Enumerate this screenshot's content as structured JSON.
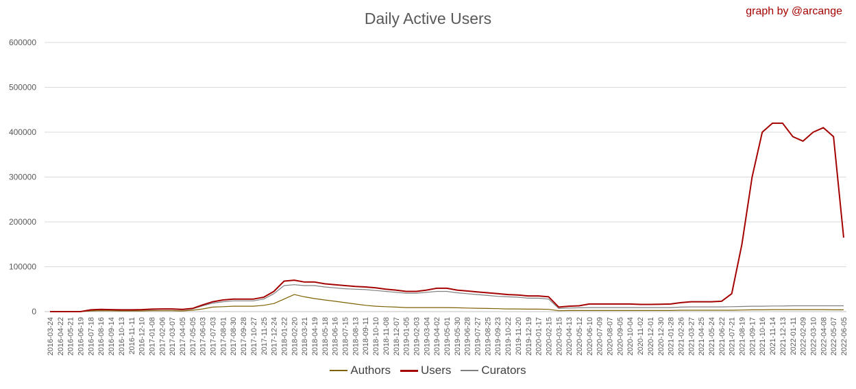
{
  "chart_data": {
    "type": "line",
    "title": "Daily Active Users",
    "credit": "graph by @arcange",
    "xlabel": "",
    "ylabel": "",
    "ylim": [
      0,
      600000
    ],
    "yticks": [
      "0",
      "100000",
      "200000",
      "300000",
      "400000",
      "500000",
      "600000"
    ],
    "grid": true,
    "legend_position": "bottom",
    "colors": {
      "Authors": "#7f6000",
      "Users": "#a50000",
      "Curators": "#7f7f7f",
      "grid": "#d9d9d9",
      "axis": "#bfbfbf",
      "text": "#595959"
    },
    "x": [
      "2016-03-24",
      "2016-04-22",
      "2016-05-21",
      "2016-06-19",
      "2016-07-18",
      "2016-08-16",
      "2016-09-14",
      "2016-10-13",
      "2016-11-11",
      "2016-12-10",
      "2017-01-08",
      "2017-02-06",
      "2017-03-07",
      "2017-04-05",
      "2017-05-05",
      "2017-06-03",
      "2017-07-03",
      "2017-08-01",
      "2017-08-30",
      "2017-09-28",
      "2017-10-27",
      "2017-11-25",
      "2017-12-24",
      "2018-01-22",
      "2018-02-20",
      "2018-03-21",
      "2018-04-19",
      "2018-05-18",
      "2018-06-16",
      "2018-07-15",
      "2018-08-13",
      "2018-09-11",
      "2018-10-10",
      "2018-11-08",
      "2018-12-07",
      "2019-01-05",
      "2019-02-03",
      "2019-03-04",
      "2019-04-02",
      "2019-05-01",
      "2019-05-30",
      "2019-06-28",
      "2019-07-27",
      "2019-08-25",
      "2019-09-23",
      "2019-10-22",
      "2019-11-20",
      "2019-12-19",
      "2020-01-17",
      "2020-02-15",
      "2020-03-15",
      "2020-04-13",
      "2020-05-12",
      "2020-06-10",
      "2020-07-09",
      "2020-08-07",
      "2020-09-05",
      "2020-10-04",
      "2020-11-02",
      "2020-12-01",
      "2020-12-30",
      "2021-01-28",
      "2021-02-26",
      "2021-03-27",
      "2021-04-25",
      "2021-05-24",
      "2021-06-22",
      "2021-07-21",
      "2021-08-19",
      "2021-09-17",
      "2021-10-16",
      "2021-11-14",
      "2021-12-13",
      "2022-01-11",
      "2022-02-09",
      "2022-03-10",
      "2022-04-08",
      "2022-05-07",
      "2022-06-05"
    ],
    "x_tick_labels": [
      "2016-03-24",
      "2016-04-22",
      "2016-05-21",
      "2016-06-19",
      "2016-07-18",
      "2016-08-16",
      "2016-09-14",
      "2016-10-13",
      "2016-11-11",
      "2016-12-10",
      "2017-01-08",
      "2017-02-06",
      "2017-03-07",
      "2017-04-05",
      "2017-05-05",
      "2017-06-03",
      "2017-07-03",
      "2017-08-01",
      "2017-08-30",
      "2017-09-28",
      "2017-10-27",
      "2017-11-25",
      "2017-12-24",
      "2018-01-22",
      "2018-02-20",
      "2018-03-21",
      "2018-04-19",
      "2018-05-18",
      "2018-06-16",
      "2018-07-15",
      "2018-08-13",
      "2018-09-11",
      "2018-10-10",
      "2018-11-08",
      "2018-12-07",
      "2019-01-05",
      "2019-02-03",
      "2019-03-04",
      "2019-04-02",
      "2019-05-01",
      "2019-05-30",
      "2019-06-28",
      "2019-07-27",
      "2019-08-25",
      "2019-09-23",
      "2019-10-22",
      "2019-11-20",
      "2019-12-19",
      "2020-01-17",
      "2020-02-15",
      "2020-03-15",
      "2020-04-13",
      "2020-05-12",
      "2020-06-10",
      "2020-07-09",
      "2020-08-07",
      "2020-09-05",
      "2020-10-04",
      "2020-11-02",
      "2020-12-01",
      "2020-12-30",
      "2021-01-28",
      "2021-02-26",
      "2021-03-27",
      "2021-04-25",
      "2021-05-24",
      "2021-06-22",
      "2021-07-21",
      "2021-08-19",
      "2021-09-17",
      "2021-10-16",
      "2021-11-14",
      "2021-12-13",
      "2022-01-11",
      "2022-02-09",
      "2022-03-10",
      "2022-04-08",
      "2022-05-07",
      "2022-06-05"
    ],
    "series": [
      {
        "name": "Authors",
        "values": [
          0,
          0,
          0,
          0,
          1500,
          2000,
          1800,
          1500,
          1500,
          1500,
          2000,
          2000,
          2000,
          1500,
          3000,
          6000,
          10000,
          11000,
          12000,
          12000,
          12000,
          14000,
          18000,
          28000,
          38000,
          33000,
          29000,
          26000,
          23000,
          20000,
          17000,
          14000,
          12000,
          11000,
          10000,
          9000,
          9000,
          9000,
          9000,
          9000,
          8500,
          8000,
          7500,
          7000,
          6500,
          6000,
          6000,
          5500,
          5500,
          5000,
          2000,
          2500,
          2500,
          2500,
          2500,
          2500,
          2500,
          2500,
          2500,
          2500,
          2500,
          2500,
          3000,
          3000,
          3000,
          3000,
          3000,
          3000,
          3500,
          4000,
          4000,
          4500,
          4500,
          4500,
          4500,
          4500,
          4500,
          4000,
          4000
        ]
      },
      {
        "name": "Users",
        "values": [
          0,
          0,
          0,
          0,
          4000,
          5000,
          4500,
          4000,
          4000,
          4500,
          5500,
          6000,
          6000,
          5000,
          7000,
          15000,
          22000,
          26000,
          28000,
          28000,
          28000,
          32000,
          45000,
          68000,
          70000,
          66000,
          66000,
          62000,
          60000,
          58000,
          56000,
          55000,
          53000,
          50000,
          48000,
          45000,
          45000,
          48000,
          52000,
          52000,
          48000,
          46000,
          44000,
          42000,
          40000,
          38000,
          37000,
          35000,
          35000,
          33000,
          10000,
          12000,
          13000,
          17000,
          17000,
          17000,
          17000,
          17000,
          16000,
          16000,
          16500,
          17000,
          20000,
          22000,
          22000,
          22000,
          23000,
          40000,
          150000,
          300000,
          400000,
          420000,
          420000,
          390000,
          380000,
          400000,
          410000,
          390000,
          165000
        ]
      },
      {
        "name": "Curators",
        "values": [
          0,
          0,
          0,
          0,
          3000,
          4000,
          3500,
          3000,
          3000,
          3500,
          4500,
          5000,
          5000,
          4000,
          6000,
          13000,
          19000,
          22000,
          24000,
          24000,
          24000,
          28000,
          40000,
          58000,
          60000,
          58000,
          58000,
          55000,
          53000,
          51000,
          50000,
          49000,
          47000,
          45000,
          43000,
          41000,
          41000,
          43000,
          45000,
          45000,
          42000,
          40000,
          38000,
          36000,
          34000,
          33000,
          32000,
          30000,
          30000,
          28000,
          7000,
          8000,
          8500,
          9000,
          9000,
          9000,
          9000,
          9000,
          9000,
          9000,
          9000,
          9000,
          10000,
          10500,
          10500,
          10500,
          10500,
          11000,
          11500,
          12000,
          12000,
          12500,
          12500,
          13000,
          13000,
          13000,
          13000,
          13000,
          13000
        ]
      }
    ]
  }
}
